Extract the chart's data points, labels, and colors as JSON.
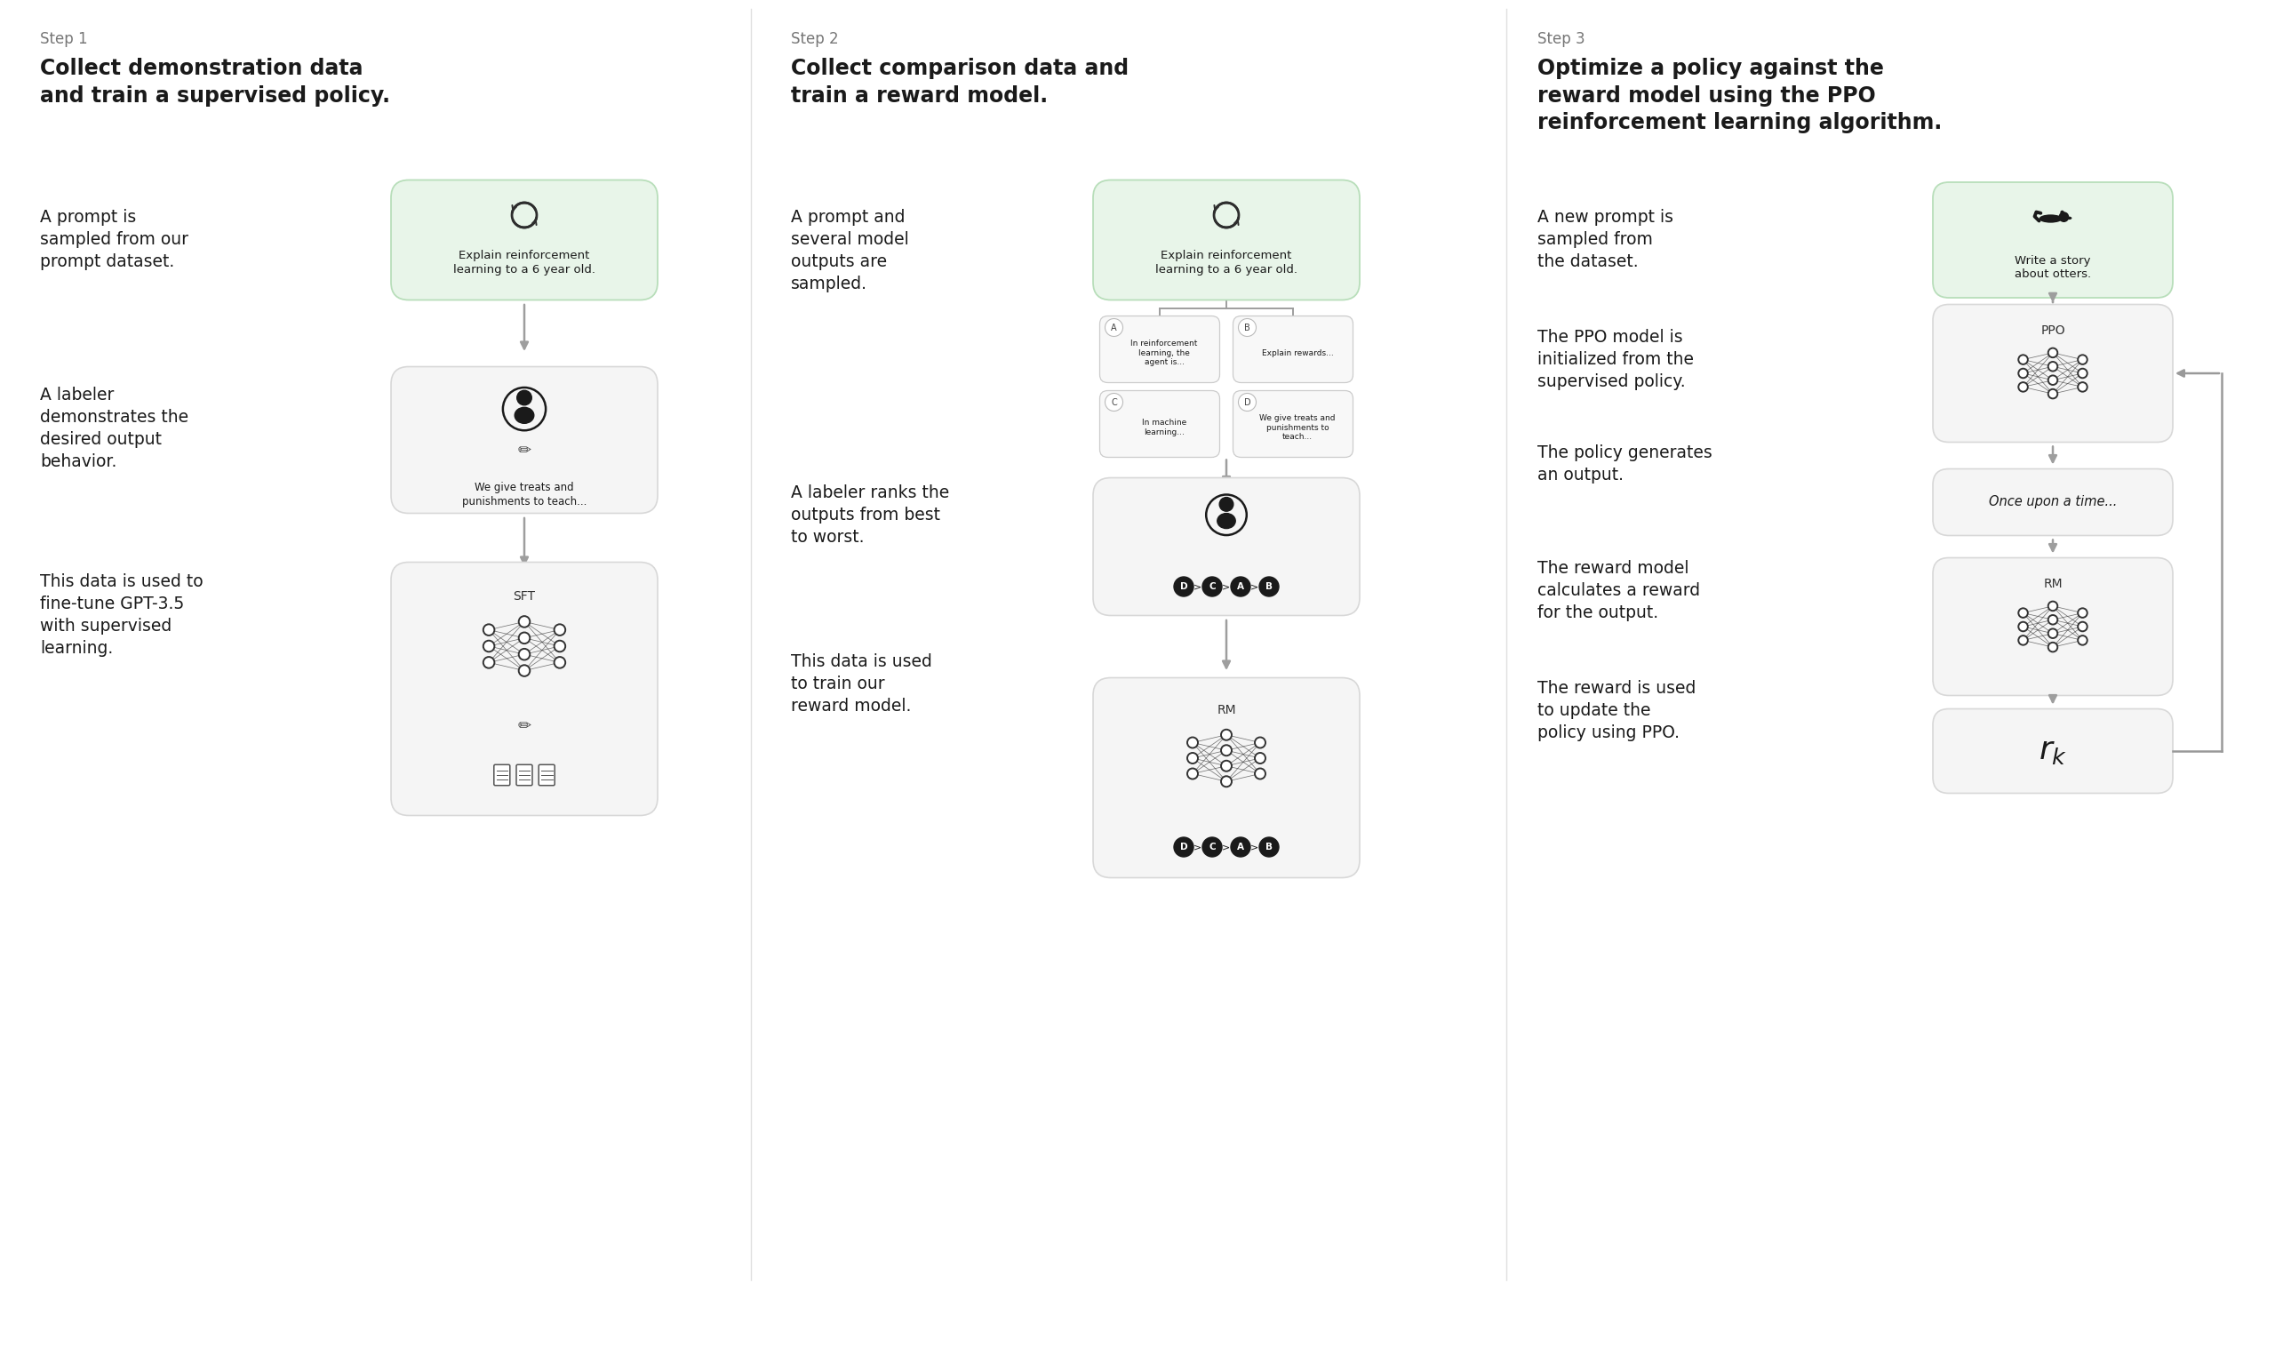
{
  "bg_color": "#ffffff",
  "step1": {
    "step_label": "Step 1",
    "title": "Collect demonstration data\nand train a supervised policy.",
    "desc1": "A prompt is\nsampled from our\nprompt dataset.",
    "desc2": "A labeler\ndemonstrates the\ndesired output\nbehavior.",
    "desc3": "This data is used to\nfine-tune GPT-3.5\nwith supervised\nlearning.",
    "box1_text": "Explain reinforcement\nlearning to a 6 year old.",
    "box2_text": "We give treats and\npunishments to teach...",
    "box3_label": "SFT"
  },
  "step2": {
    "step_label": "Step 2",
    "title": "Collect comparison data and\ntrain a reward model.",
    "desc1": "A prompt and\nseveral model\noutputs are\nsampled.",
    "desc2": "A labeler ranks the\noutputs from best\nto worst.",
    "desc3": "This data is used\nto train our\nreward model.",
    "box1_text": "Explain reinforcement\nlearning to a 6 year old.",
    "optA": "In reinforcement\nlearning, the\nagent is...",
    "optB": "Explain rewards...",
    "optC": "In machine\nlearning...",
    "optD": "We give treats and\npunishments to\nteach...",
    "rank_text": "D > C > A > B",
    "rm_label": "RM",
    "rm_rank_text": "D > C > A > B"
  },
  "step3": {
    "step_label": "Step 3",
    "title": "Optimize a policy against the\nreward model using the PPO\nreinforcement learning algorithm.",
    "desc1": "A new prompt is\nsampled from\nthe dataset.",
    "desc2": "The PPO model is\ninitialized from the\nsupervised policy.",
    "desc3": "The policy generates\nan output.",
    "desc4": "The reward model\ncalculates a reward\nfor the output.",
    "desc5": "The reward is used\nto update the\npolicy using PPO.",
    "box1_text": "Write a story\nabout otters.",
    "ppo_label": "PPO",
    "output_text": "Once upon a time...",
    "rm_label": "RM",
    "reward_text": "$r_k$"
  },
  "colors": {
    "green_bg": "#e8f5e9",
    "gray_bg": "#f5f5f5",
    "arrow_color": "#9e9e9e",
    "box_border": "#d8d8d8",
    "green_border": "#b8deba",
    "dark_text": "#1a1a1a",
    "step_label_color": "#777777",
    "node_color": "#333333",
    "node_edge": "#1a1a1a",
    "divider": "#e0e0e0"
  }
}
